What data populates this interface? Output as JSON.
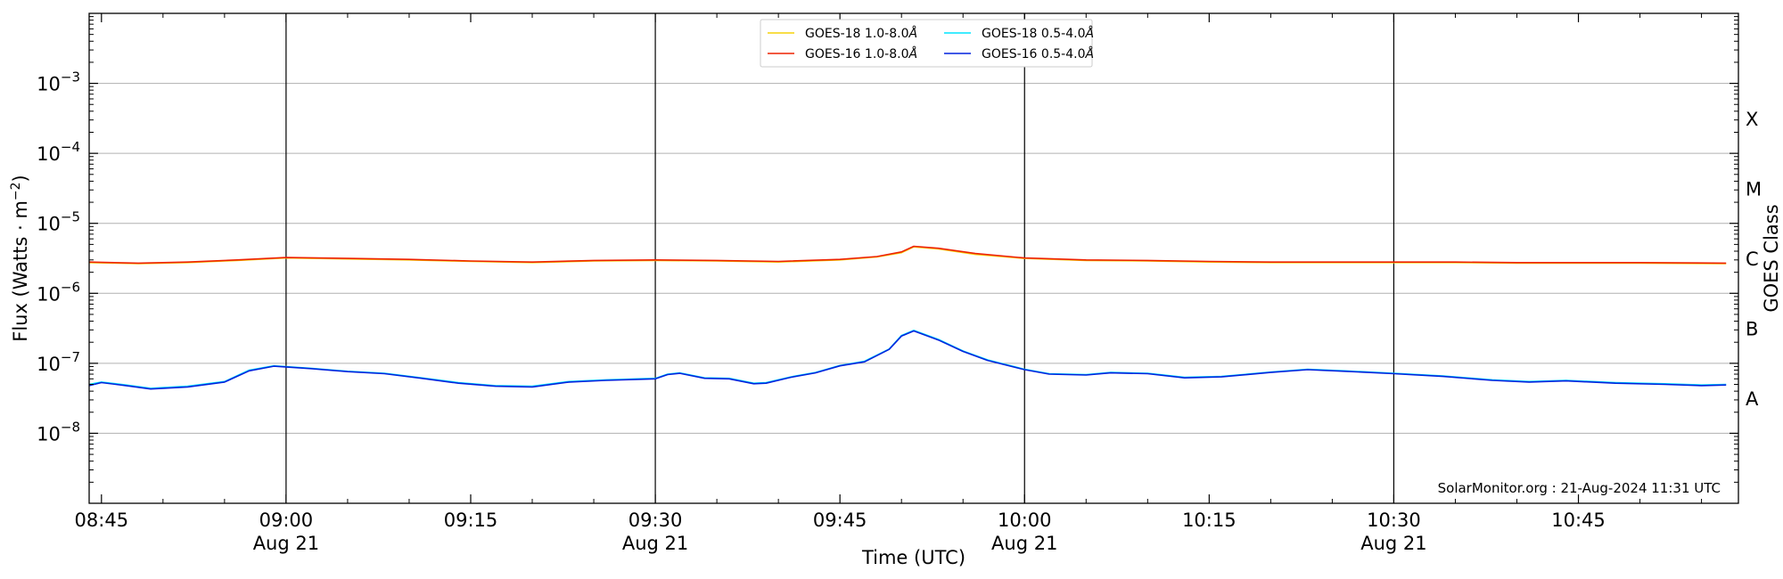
{
  "chart_data": {
    "type": "line",
    "x_unit": "time (UTC)",
    "xlim": [
      "08:44",
      "10:58"
    ],
    "y_scale": "log",
    "ylim": [
      1e-09,
      0.01
    ],
    "grid": "horizontal at each decade",
    "legend_placement": "top-center",
    "xlabel": "Time (UTC)",
    "ylabel_main": "Flux (Watts · m",
    "ylabel_sup": "−2",
    "ylabel_close": ")",
    "right_axis_label": "GOES Class",
    "y_tick_labels": [
      {
        "base": "10",
        "exp": "−3",
        "value": 0.001
      },
      {
        "base": "10",
        "exp": "−4",
        "value": 0.0001
      },
      {
        "base": "10",
        "exp": "−5",
        "value": 1e-05
      },
      {
        "base": "10",
        "exp": "−6",
        "value": 1e-06
      },
      {
        "base": "10",
        "exp": "−7",
        "value": 1e-07
      },
      {
        "base": "10",
        "exp": "−8",
        "value": 1e-08
      }
    ],
    "goes_classes": [
      {
        "label": "X",
        "value": 0.0003162
      },
      {
        "label": "M",
        "value": 3.162e-05
      },
      {
        "label": "C",
        "value": 3.162e-06
      },
      {
        "label": "B",
        "value": 3.162e-07
      },
      {
        "label": "A",
        "value": 3.162e-08
      }
    ],
    "x_ticks": [
      {
        "time": "08:45",
        "line1": "08:45",
        "line2": ""
      },
      {
        "time": "09:00",
        "line1": "09:00",
        "line2": "Aug 21"
      },
      {
        "time": "09:15",
        "line1": "09:15",
        "line2": ""
      },
      {
        "time": "09:30",
        "line1": "09:30",
        "line2": "Aug 21"
      },
      {
        "time": "09:45",
        "line1": "09:45",
        "line2": ""
      },
      {
        "time": "10:00",
        "line1": "10:00",
        "line2": "Aug 21"
      },
      {
        "time": "10:15",
        "line1": "10:15",
        "line2": ""
      },
      {
        "time": "10:30",
        "line1": "10:30",
        "line2": "Aug 21"
      },
      {
        "time": "10:45",
        "line1": "10:45",
        "line2": ""
      }
    ],
    "vertical_markers": [
      "09:00",
      "09:30",
      "10:00",
      "10:30"
    ],
    "series": [
      {
        "name": "GOES-18 1.0-8.0Å",
        "legend_name": "GOES-18 1.0-8.0",
        "color": "#f5d20a",
        "x": [
          "08:44",
          "08:48",
          "08:52",
          "08:56",
          "09:00",
          "09:05",
          "09:10",
          "09:15",
          "09:20",
          "09:25",
          "09:30",
          "09:35",
          "09:40",
          "09:45",
          "09:48",
          "09:50",
          "09:51",
          "09:53",
          "09:56",
          "10:00",
          "10:05",
          "10:10",
          "10:15",
          "10:20",
          "10:25",
          "10:30",
          "10:35",
          "10:40",
          "10:45",
          "10:50",
          "10:57"
        ],
        "y": [
          2.75e-06,
          2.65e-06,
          2.75e-06,
          2.95e-06,
          3.2e-06,
          3.1e-06,
          3e-06,
          2.85e-06,
          2.75e-06,
          2.9e-06,
          2.95e-06,
          2.9e-06,
          2.8e-06,
          3e-06,
          3.3e-06,
          3.8e-06,
          4.6e-06,
          4.3e-06,
          3.6e-06,
          3.15e-06,
          2.95e-06,
          2.9e-06,
          2.8e-06,
          2.75e-06,
          2.75e-06,
          2.75e-06,
          2.75e-06,
          2.7e-06,
          2.7e-06,
          2.7e-06,
          2.65e-06
        ]
      },
      {
        "name": "GOES-18 0.5-4.0Å",
        "legend_name": "GOES-18 0.5-4.0",
        "color": "#00e5ff",
        "x": [
          "08:44",
          "08:45",
          "08:47",
          "08:49",
          "08:52",
          "08:55",
          "08:57",
          "08:59",
          "09:02",
          "09:05",
          "09:08",
          "09:11",
          "09:14",
          "09:17",
          "09:20",
          "09:23",
          "09:26",
          "09:30",
          "09:31",
          "09:32",
          "09:34",
          "09:36",
          "09:38",
          "09:39",
          "09:41",
          "09:43",
          "09:45",
          "09:47",
          "09:49",
          "09:50",
          "09:51",
          "09:53",
          "09:55",
          "09:57",
          "10:00",
          "10:02",
          "10:05",
          "10:07",
          "10:10",
          "10:13",
          "10:16",
          "10:20",
          "10:23",
          "10:26",
          "10:30",
          "10:34",
          "10:38",
          "10:41",
          "10:44",
          "10:48",
          "10:52",
          "10:55",
          "10:57"
        ],
        "y": [
          5e-08,
          5.4e-08,
          4.9e-08,
          4.4e-08,
          4.7e-08,
          5.5e-08,
          8e-08,
          9.2e-08,
          8.5e-08,
          7.7e-08,
          7.2e-08,
          6.2e-08,
          5.3e-08,
          4.8e-08,
          4.7e-08,
          5.5e-08,
          5.8e-08,
          6.1e-08,
          7e-08,
          7.3e-08,
          6.2e-08,
          6.1e-08,
          5.2e-08,
          5.3e-08,
          6.4e-08,
          7.4e-08,
          9.3e-08,
          1.07e-07,
          1.6e-07,
          2.5e-07,
          2.95e-07,
          2.2e-07,
          1.5e-07,
          1.12e-07,
          8.2e-08,
          7.1e-08,
          6.9e-08,
          7.4e-08,
          7.2e-08,
          6.3e-08,
          6.5e-08,
          7.5e-08,
          8.2e-08,
          7.8e-08,
          7.2e-08,
          6.6e-08,
          5.8e-08,
          5.5e-08,
          5.7e-08,
          5.3e-08,
          5.1e-08,
          4.9e-08,
          5e-08
        ]
      },
      {
        "name": "GOES-16 1.0-8.0Å",
        "legend_name": "GOES-16 1.0-8.0",
        "color": "#ee2200",
        "x": [
          "08:44",
          "08:48",
          "08:52",
          "08:56",
          "09:00",
          "09:05",
          "09:10",
          "09:15",
          "09:20",
          "09:25",
          "09:30",
          "09:35",
          "09:40",
          "09:45",
          "09:48",
          "09:50",
          "09:51",
          "09:53",
          "09:56",
          "10:00",
          "10:05",
          "10:10",
          "10:15",
          "10:20",
          "10:25",
          "10:30",
          "10:35",
          "10:40",
          "10:45",
          "10:50",
          "10:57"
        ],
        "y": [
          2.8e-06,
          2.7e-06,
          2.8e-06,
          3e-06,
          3.25e-06,
          3.15e-06,
          3.05e-06,
          2.9e-06,
          2.8e-06,
          2.95e-06,
          3e-06,
          2.95e-06,
          2.85e-06,
          3.05e-06,
          3.35e-06,
          3.9e-06,
          4.7e-06,
          4.4e-06,
          3.7e-06,
          3.2e-06,
          3e-06,
          2.95e-06,
          2.85e-06,
          2.8e-06,
          2.8e-06,
          2.8e-06,
          2.8e-06,
          2.75e-06,
          2.75e-06,
          2.75e-06,
          2.7e-06
        ]
      },
      {
        "name": "GOES-16 0.5-4.0Å",
        "legend_name": "GOES-16 0.5-4.0",
        "color": "#0022dd",
        "x": [
          "08:44",
          "08:45",
          "08:47",
          "08:49",
          "08:52",
          "08:55",
          "08:57",
          "08:59",
          "09:02",
          "09:05",
          "09:08",
          "09:11",
          "09:14",
          "09:17",
          "09:20",
          "09:23",
          "09:26",
          "09:30",
          "09:31",
          "09:32",
          "09:34",
          "09:36",
          "09:38",
          "09:39",
          "09:41",
          "09:43",
          "09:45",
          "09:47",
          "09:49",
          "09:50",
          "09:51",
          "09:53",
          "09:55",
          "09:57",
          "10:00",
          "10:02",
          "10:05",
          "10:07",
          "10:10",
          "10:13",
          "10:16",
          "10:20",
          "10:23",
          "10:26",
          "10:30",
          "10:34",
          "10:38",
          "10:41",
          "10:44",
          "10:48",
          "10:52",
          "10:55",
          "10:57"
        ],
        "y": [
          4.8e-08,
          5.3e-08,
          4.8e-08,
          4.3e-08,
          4.6e-08,
          5.4e-08,
          7.8e-08,
          9.1e-08,
          8.4e-08,
          7.6e-08,
          7.1e-08,
          6.1e-08,
          5.2e-08,
          4.7e-08,
          4.6e-08,
          5.4e-08,
          5.7e-08,
          6e-08,
          6.9e-08,
          7.2e-08,
          6.1e-08,
          6e-08,
          5.1e-08,
          5.2e-08,
          6.3e-08,
          7.3e-08,
          9.2e-08,
          1.05e-07,
          1.58e-07,
          2.45e-07,
          2.9e-07,
          2.15e-07,
          1.48e-07,
          1.1e-07,
          8.1e-08,
          7e-08,
          6.8e-08,
          7.3e-08,
          7.1e-08,
          6.2e-08,
          6.4e-08,
          7.4e-08,
          8.1e-08,
          7.7e-08,
          7.1e-08,
          6.5e-08,
          5.7e-08,
          5.4e-08,
          5.6e-08,
          5.2e-08,
          5e-08,
          4.8e-08,
          4.9e-08
        ]
      }
    ],
    "credit": "SolarMonitor.org : 21-Aug-2024 11:31 UTC"
  }
}
